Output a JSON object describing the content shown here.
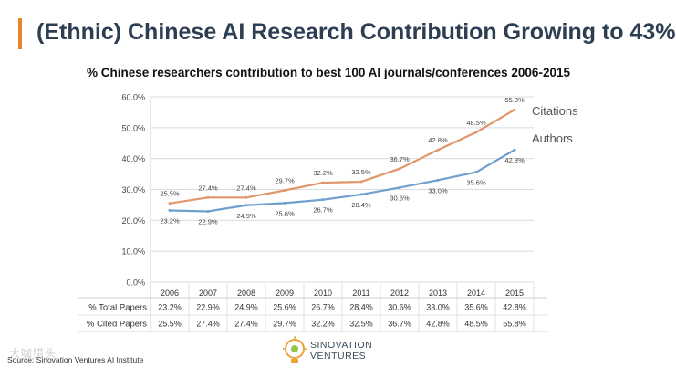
{
  "slide": {
    "title": "(Ethnic) Chinese AI Research Contribution Growing to 43%",
    "source": "Source: Sinovation Ventures AI Institute",
    "watermark": "大咖猎头",
    "logo": {
      "line1": "SINOVATION",
      "line2": "VENTURES"
    }
  },
  "colors": {
    "accent": "#e8862a",
    "citations": "#e0966a",
    "authors": "#6f9fcf",
    "title": "#2d3e52"
  },
  "chart_data": {
    "type": "line",
    "title": "% Chinese researchers contribution to best 100 AI journals/conferences 2006-2015",
    "categories": [
      "2006",
      "2007",
      "2008",
      "2009",
      "2010",
      "2011",
      "2012",
      "2013",
      "2014",
      "2015"
    ],
    "ylim": [
      0,
      60
    ],
    "yticks": [
      0,
      10,
      20,
      30,
      40,
      50,
      60
    ],
    "ytick_labels": [
      "0.0%",
      "10.0%",
      "20.0%",
      "30.0%",
      "40.0%",
      "50.0%",
      "60.0%"
    ],
    "grid": true,
    "series": [
      {
        "name": "Citations",
        "key": "citations",
        "values": [
          25.5,
          27.4,
          27.4,
          29.7,
          32.2,
          32.5,
          36.7,
          42.8,
          48.5,
          55.8
        ],
        "labels": [
          "25.5%",
          "27.4%",
          "27.4%",
          "29.7%",
          "32.2%",
          "32.5%",
          "36.7%",
          "42.8%",
          "48.5%",
          "55.8%"
        ]
      },
      {
        "name": "Authors",
        "key": "authors",
        "values": [
          23.2,
          22.9,
          24.9,
          25.6,
          26.7,
          28.4,
          30.6,
          33.0,
          35.6,
          42.8
        ],
        "labels": [
          "23.2%",
          "22.9%",
          "24.9%",
          "25.6%",
          "26.7%",
          "28.4%",
          "30.6%",
          "33.0%",
          "35.6%",
          "42.8%"
        ]
      }
    ],
    "table": {
      "rows": [
        {
          "label": "% Total Papers",
          "cells": [
            "23.2%",
            "22.9%",
            "24.9%",
            "25.6%",
            "26.7%",
            "28.4%",
            "30.6%",
            "33.0%",
            "35.6%",
            "42.8%"
          ]
        },
        {
          "label": "% Cited Papers",
          "cells": [
            "25.5%",
            "27.4%",
            "27.4%",
            "29.7%",
            "32.2%",
            "32.5%",
            "36.7%",
            "42.8%",
            "48.5%",
            "55.8%"
          ]
        }
      ]
    }
  }
}
